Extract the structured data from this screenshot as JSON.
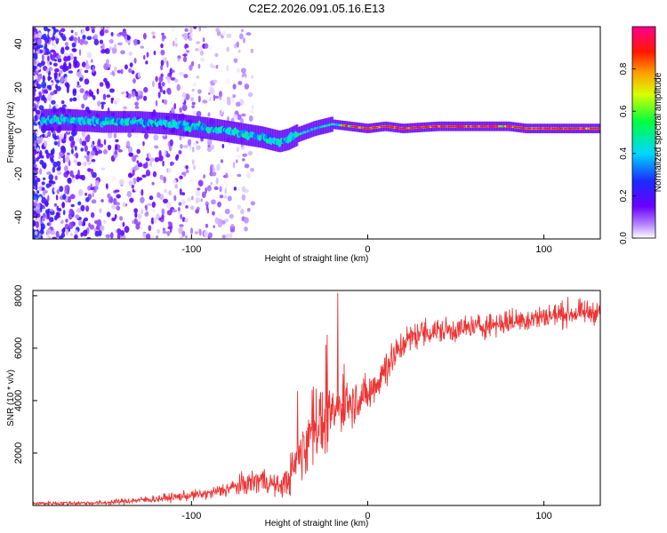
{
  "title": "C2E2.2026.091.05.16.E13",
  "chart_data": [
    {
      "type": "heatmap",
      "name": "spectrogram",
      "xlabel": "Height of straight line (km)",
      "ylabel": "Frequency (Hz)",
      "xlim": [
        -190,
        132
      ],
      "ylim": [
        -50,
        48
      ],
      "xticks": [
        -100,
        0,
        100
      ],
      "yticks": [
        -40,
        -20,
        0,
        20,
        40
      ],
      "colorbar": {
        "label": "Normalized spectral amplitude",
        "range": [
          0,
          1
        ],
        "ticks": [
          "0.0",
          "0.2",
          "0.4",
          "0.6",
          "0.8"
        ],
        "colormap": [
          "#ffffff",
          "#6a00ff",
          "#0050ff",
          "#00e0ff",
          "#00ff40",
          "#ffff00",
          "#ff8000",
          "#ff0000",
          "#ff00a0"
        ]
      },
      "ridge": {
        "x": [
          -170,
          -150,
          -130,
          -110,
          -90,
          -75,
          -60,
          -50,
          -45,
          -40,
          -30,
          -20,
          -10,
          0,
          10,
          20,
          40,
          60,
          80,
          90,
          100,
          132
        ],
        "frequency": [
          5,
          4,
          4,
          3,
          1,
          -1,
          -3,
          -5,
          -4,
          -2,
          1,
          3,
          2,
          1,
          2,
          1,
          2,
          2,
          2,
          1,
          1,
          1
        ]
      }
    },
    {
      "type": "line",
      "name": "snr",
      "xlabel": "Height of straight line (km)",
      "ylabel": "SNR (10 * v/v)",
      "xlim": [
        -190,
        132
      ],
      "ylim": [
        0,
        8200
      ],
      "xticks": [
        -100,
        0,
        100
      ],
      "yticks": [
        2000,
        4000,
        6000,
        8000
      ],
      "color": "#ee3333",
      "envelope": {
        "x": [
          -190,
          -150,
          -120,
          -90,
          -70,
          -60,
          -50,
          -45,
          -35,
          -30,
          -25,
          -20,
          -10,
          0,
          10,
          20,
          30,
          50,
          70,
          90,
          110,
          132
        ],
        "mean": [
          80,
          100,
          250,
          450,
          800,
          1000,
          700,
          1000,
          2400,
          3200,
          3000,
          3500,
          4000,
          4200,
          5200,
          6200,
          6600,
          6700,
          6900,
          7100,
          7300,
          7400
        ],
        "spread": [
          120,
          150,
          250,
          350,
          700,
          900,
          600,
          1100,
          2200,
          2200,
          1800,
          1700,
          1500,
          1300,
          1300,
          900,
          900,
          800,
          800,
          800,
          800,
          700
        ]
      }
    }
  ]
}
